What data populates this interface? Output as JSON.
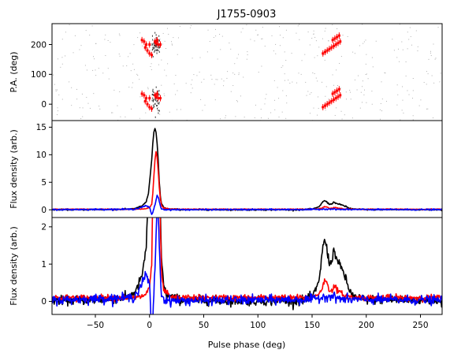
{
  "chart_data": {
    "title": "J1755-0903",
    "type": "line",
    "xlabel": "Pulse phase (deg)",
    "xlim": [
      -90,
      270
    ],
    "xticks": [
      -50,
      0,
      50,
      100,
      150,
      200,
      250
    ],
    "colors": {
      "total": "#000000",
      "linear": "#ff0000",
      "circular": "#0000ff"
    },
    "panels": [
      {
        "id": "pa",
        "type": "scatter",
        "ylabel": "P.A. (deg)",
        "ylim": [
          -55,
          270
        ],
        "yticks": [
          0,
          100,
          200
        ],
        "fitted_points": [
          [
            0,
            200
          ],
          [
            -3,
            200
          ],
          [
            -5,
            210
          ],
          [
            -7,
            215
          ],
          [
            -4,
            190
          ],
          [
            -2,
            180
          ],
          [
            0,
            170
          ],
          [
            2,
            165
          ],
          [
            5,
            210
          ],
          [
            6,
            205
          ],
          [
            8,
            200
          ],
          [
            10,
            200
          ],
          [
            7,
            215
          ],
          [
            160,
            170
          ],
          [
            162,
            175
          ],
          [
            164,
            180
          ],
          [
            166,
            185
          ],
          [
            168,
            190
          ],
          [
            170,
            195
          ],
          [
            172,
            200
          ],
          [
            174,
            205
          ],
          [
            176,
            210
          ],
          [
            169,
            215
          ],
          [
            171,
            220
          ],
          [
            173,
            225
          ],
          [
            175,
            230
          ]
        ],
        "offset_deg": 180
      },
      {
        "id": "full",
        "ylabel": "Flux density (arb.)",
        "ylim": [
          -1.4,
          16.2
        ],
        "yticks": [
          0,
          5,
          10,
          15
        ]
      },
      {
        "id": "zoom",
        "ylabel": "Flux density (arb.)",
        "ylim": [
          -0.35,
          2.25
        ],
        "yticks": [
          0,
          1,
          2
        ]
      }
    ],
    "profile": {
      "total": [
        [
          -90,
          0.02
        ],
        [
          -40,
          0.05
        ],
        [
          -20,
          0.1
        ],
        [
          -12,
          0.3
        ],
        [
          -6,
          0.8
        ],
        [
          -3,
          1.5
        ],
        [
          -1,
          3
        ],
        [
          0,
          5
        ],
        [
          1,
          7
        ],
        [
          2,
          9
        ],
        [
          3,
          12
        ],
        [
          4,
          14
        ],
        [
          5,
          14.8
        ],
        [
          6,
          14
        ],
        [
          7,
          12
        ],
        [
          8,
          9
        ],
        [
          9,
          5
        ],
        [
          10,
          2.5
        ],
        [
          11,
          1.2
        ],
        [
          13,
          0.4
        ],
        [
          16,
          0.15
        ],
        [
          30,
          0.03
        ],
        [
          100,
          0.01
        ],
        [
          140,
          0.02
        ],
        [
          150,
          0.1
        ],
        [
          155,
          0.4
        ],
        [
          158,
          0.9
        ],
        [
          160,
          1.5
        ],
        [
          162,
          1.65
        ],
        [
          164,
          1.35
        ],
        [
          166,
          1.0
        ],
        [
          168,
          1.1
        ],
        [
          170,
          1.35
        ],
        [
          172,
          1.25
        ],
        [
          174,
          1.0
        ],
        [
          176,
          0.95
        ],
        [
          178,
          0.85
        ],
        [
          180,
          0.7
        ],
        [
          182,
          0.5
        ],
        [
          185,
          0.25
        ],
        [
          190,
          0.1
        ],
        [
          200,
          0.05
        ],
        [
          270,
          0.02
        ]
      ],
      "linear": [
        [
          -90,
          0.1
        ],
        [
          -10,
          0.1
        ],
        [
          -3,
          0.2
        ],
        [
          0,
          0.4
        ],
        [
          2,
          1
        ],
        [
          3,
          3
        ],
        [
          4,
          6
        ],
        [
          5,
          9
        ],
        [
          6,
          10.6
        ],
        [
          7,
          9.5
        ],
        [
          8,
          7
        ],
        [
          9,
          4
        ],
        [
          10,
          2
        ],
        [
          11,
          0.8
        ],
        [
          13,
          0.3
        ],
        [
          20,
          0.1
        ],
        [
          150,
          0.1
        ],
        [
          156,
          0.2
        ],
        [
          160,
          0.4
        ],
        [
          162,
          0.6
        ],
        [
          164,
          0.45
        ],
        [
          166,
          0.3
        ],
        [
          168,
          0.3
        ],
        [
          170,
          0.4
        ],
        [
          172,
          0.35
        ],
        [
          175,
          0.25
        ],
        [
          180,
          0.15
        ],
        [
          190,
          0.1
        ],
        [
          270,
          0.1
        ]
      ],
      "circular": [
        [
          -90,
          0.03
        ],
        [
          -15,
          0.1
        ],
        [
          -10,
          0.3
        ],
        [
          -6,
          0.55
        ],
        [
          -4,
          0.7
        ],
        [
          -2,
          0.65
        ],
        [
          0,
          0.4
        ],
        [
          1,
          -0.2
        ],
        [
          2,
          -0.9
        ],
        [
          3,
          -0.5
        ],
        [
          4,
          0.2
        ],
        [
          5,
          0.9
        ],
        [
          6,
          1.8
        ],
        [
          7,
          2.6
        ],
        [
          8,
          2.3
        ],
        [
          9,
          1.5
        ],
        [
          10,
          0.7
        ],
        [
          11,
          0.2
        ],
        [
          13,
          0.05
        ],
        [
          20,
          0.02
        ],
        [
          150,
          0.05
        ],
        [
          165,
          0.15
        ],
        [
          180,
          0.05
        ],
        [
          270,
          0.03
        ]
      ],
      "noise": {
        "total": 0.06,
        "linear": 0.04,
        "circular": 0.06
      }
    }
  }
}
